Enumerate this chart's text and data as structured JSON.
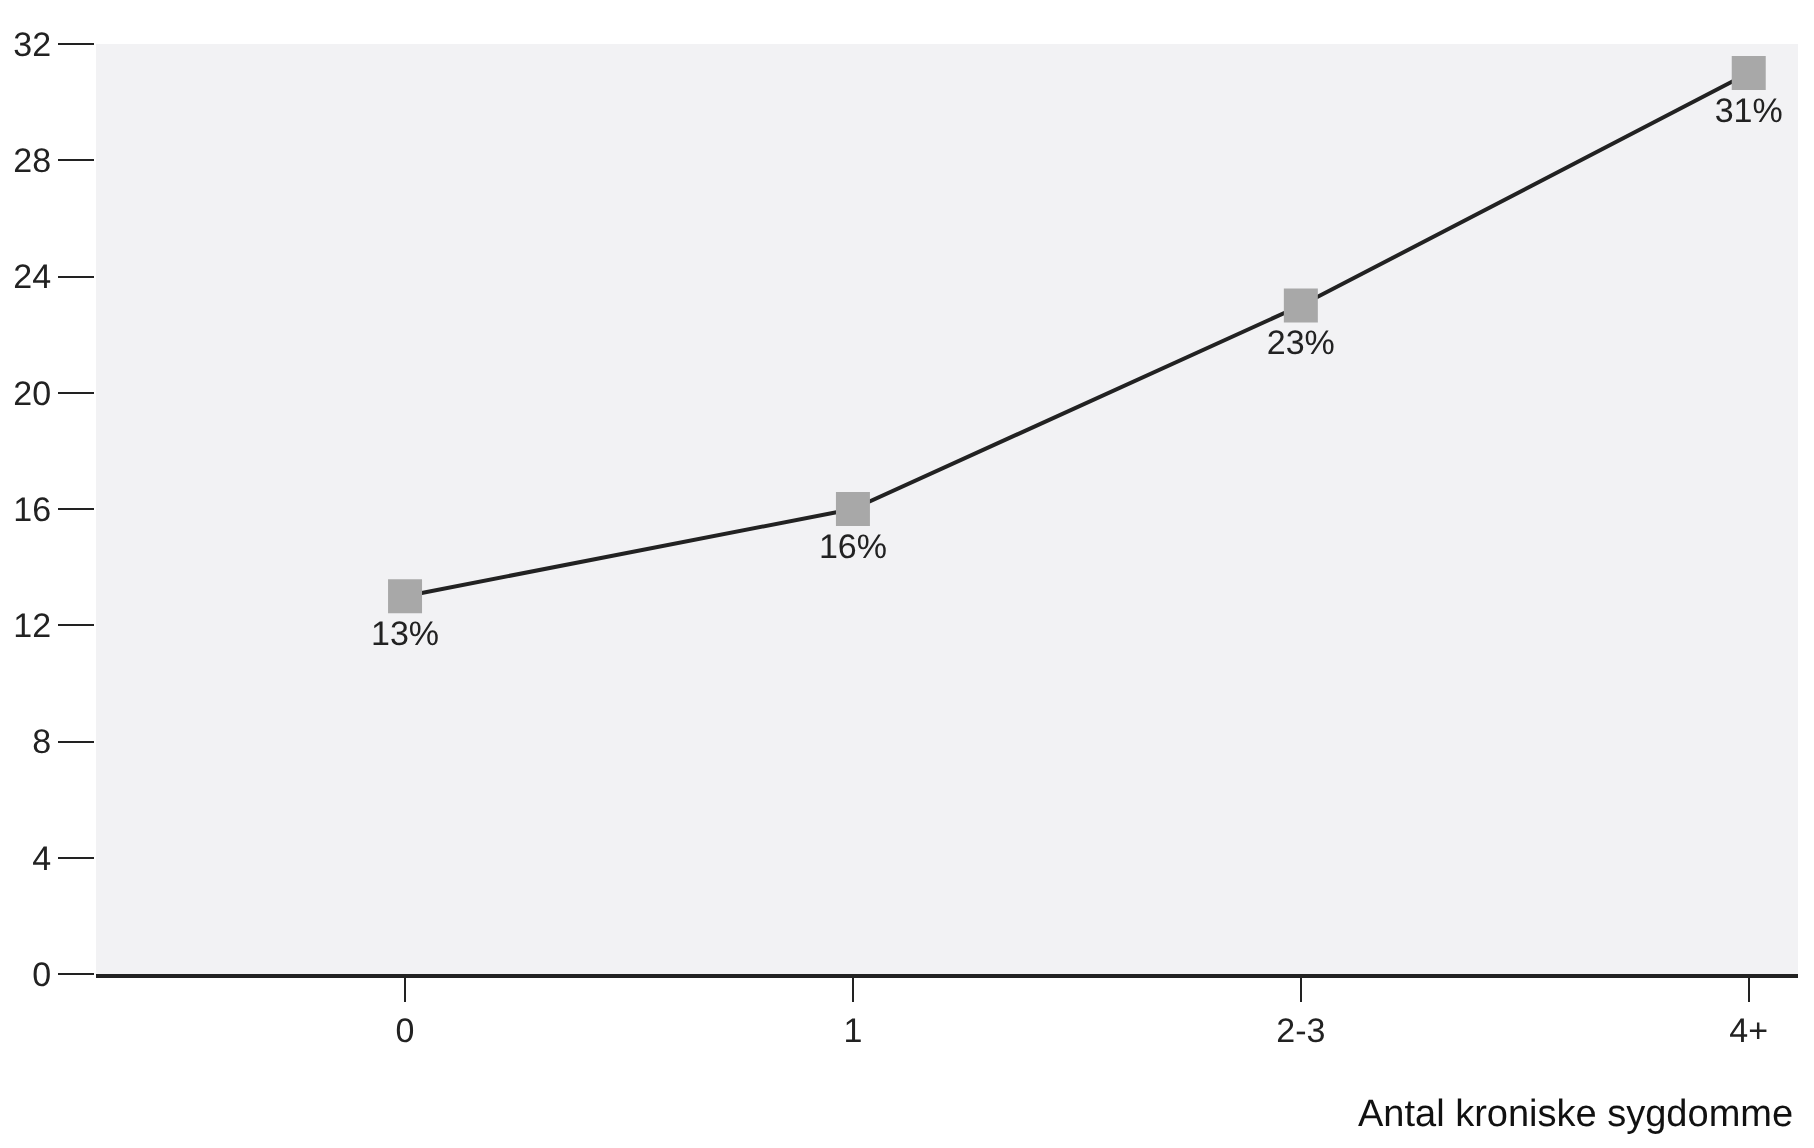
{
  "chart_data": {
    "type": "line",
    "xlabel": "Antal kroniske sygdomme",
    "categories": [
      "0",
      "1",
      "2-3",
      "4+"
    ],
    "series": [
      {
        "color": "#222222",
        "values": [
          13,
          16,
          23,
          31
        ],
        "value_labels": [
          "13%",
          "16%",
          "23%",
          "31%"
        ]
      }
    ],
    "ylim": [
      0,
      32
    ],
    "yticks": [
      0,
      4,
      8,
      12,
      16,
      20,
      24,
      28,
      32
    ],
    "grid": false,
    "marker": "square",
    "line_style": "solid"
  }
}
